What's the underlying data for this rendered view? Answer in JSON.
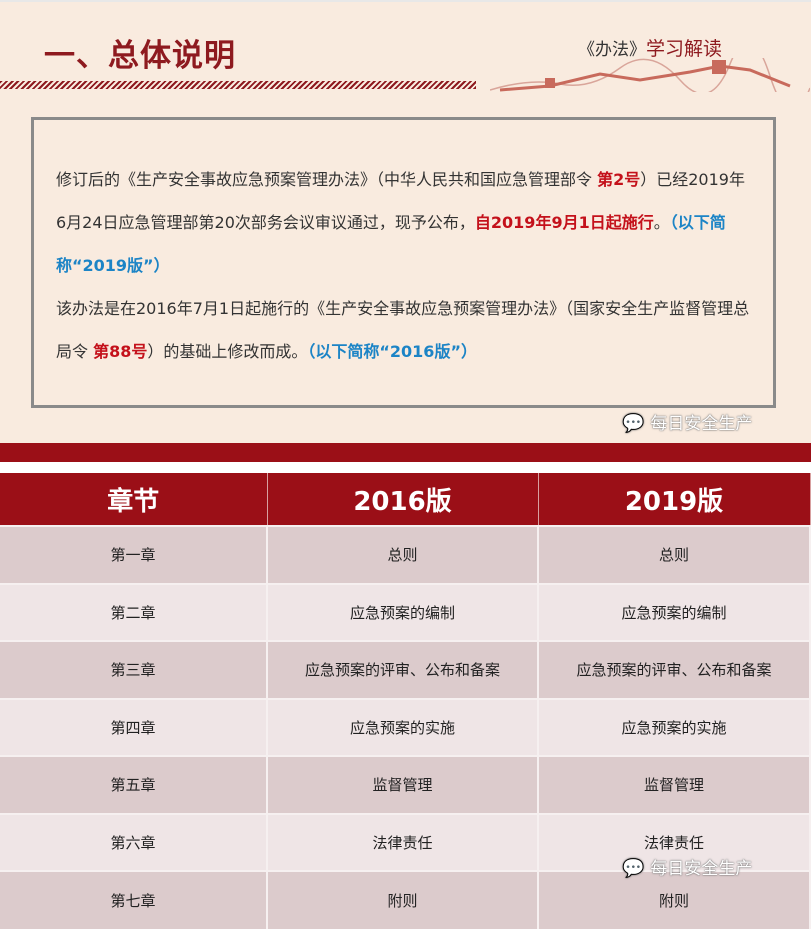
{
  "header": {
    "title": "一、总体说明",
    "subtitle_bracket": "《办法》",
    "subtitle": "学习解读"
  },
  "intro": {
    "p1": [
      {
        "t": "修订后的《生产安全事故应急预案管理办法》（中华人民共和国应急管理部令 ",
        "s": "n"
      },
      {
        "t": "第2号",
        "s": "red"
      },
      {
        "t": "）已经2019年6月24日应急管理部第20次部务会议审议通过，现予公布，",
        "s": "n"
      },
      {
        "t": "自2019年9月1日起施行",
        "s": "red"
      },
      {
        "t": "。",
        "s": "n"
      },
      {
        "t": "（以下简称“2019版”）",
        "s": "blue"
      }
    ],
    "p2": [
      {
        "t": "该办法是在2016年7月1日起施行的《生产安全事故应急预案管理办法》（国家安全生产监督管理总局令 ",
        "s": "n"
      },
      {
        "t": "第88号",
        "s": "red"
      },
      {
        "t": "）的基础上修改而成。",
        "s": "n"
      },
      {
        "t": "（以下简称“2016版”）",
        "s": "blue"
      }
    ]
  },
  "watermark": {
    "text": "每日安全生产",
    "icon": "wechat-icon"
  },
  "table": {
    "headers": [
      "章节",
      "2016版",
      "2019版"
    ],
    "rows": [
      [
        "第一章",
        "总则",
        "总则"
      ],
      [
        "第二章",
        "应急预案的编制",
        "应急预案的编制"
      ],
      [
        "第三章",
        "应急预案的评审、公布和备案",
        "应急预案的评审、公布和备案"
      ],
      [
        "第四章",
        "应急预案的实施",
        "应急预案的实施"
      ],
      [
        "第五章",
        "监督管理",
        "监督管理"
      ],
      [
        "第六章",
        "法律责任",
        "法律责任"
      ],
      [
        "第七章",
        "附则",
        "附则"
      ]
    ]
  },
  "colors": {
    "brand_red": "#9b0f17",
    "title_red": "#8e1a1f",
    "highlight_red": "#c4111b",
    "highlight_blue": "#1c84c6",
    "background": "#f9ebdf"
  }
}
